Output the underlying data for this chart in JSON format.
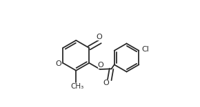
{
  "bg_color": "#ffffff",
  "line_color": "#2a2a2a",
  "line_width": 1.3,
  "font_size": 8.0,
  "figsize": [
    2.9,
    1.56
  ],
  "dpi": 100,
  "xlim": [
    -0.05,
    1.05
  ],
  "ylim": [
    -0.05,
    1.05
  ]
}
